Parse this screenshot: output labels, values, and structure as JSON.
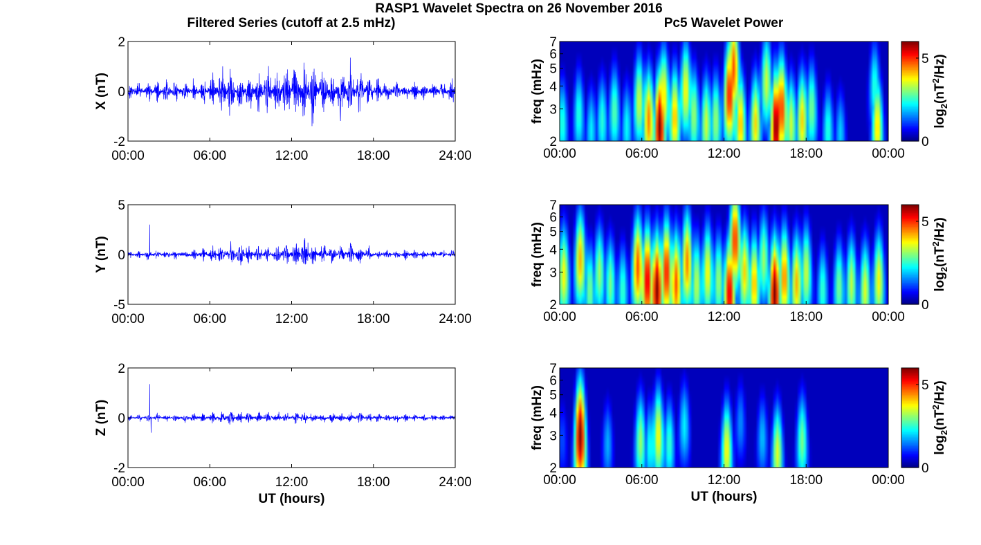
{
  "figure": {
    "title": "RASP1 Wavelet Spectra on 26 November 2016",
    "left_column_title": "Filtered Series (cutoff at 2.5 mHz)",
    "right_column_title": "Pc5 Wavelet Power"
  },
  "colors": {
    "trace": "#0000ff",
    "frame": "#000000"
  },
  "colormap": "jet",
  "chart_data": [
    {
      "type": "line",
      "component": "X",
      "ylabel": "X (nT)",
      "xlabel": "",
      "xlim": [
        0,
        24
      ],
      "ylim": [
        -2,
        2
      ],
      "yticks": [
        "2",
        "0",
        "-2"
      ],
      "xticks": [
        "00:00",
        "06:00",
        "12:00",
        "18:00",
        "24:00"
      ],
      "x_hours": [
        0,
        1,
        2,
        3,
        4,
        5,
        6,
        7,
        8,
        9,
        10,
        11,
        12,
        13,
        14,
        15,
        16,
        17,
        18,
        19,
        20,
        21,
        22,
        23,
        24
      ],
      "amplitude_nT": [
        0.2,
        0.2,
        0.25,
        0.25,
        0.25,
        0.3,
        0.35,
        0.6,
        0.55,
        0.5,
        0.5,
        0.6,
        0.7,
        0.9,
        0.6,
        0.5,
        0.7,
        0.5,
        0.35,
        0.3,
        0.25,
        0.25,
        0.2,
        0.2,
        0.3
      ],
      "peaks": [
        {
          "x": 16.3,
          "y": 1.35
        },
        {
          "x": 13.5,
          "y": -1.4
        },
        {
          "x": 12.9,
          "y": 1.15
        }
      ],
      "grid": false
    },
    {
      "type": "line",
      "component": "Y",
      "ylabel": "Y (nT)",
      "xlabel": "",
      "xlim": [
        0,
        24
      ],
      "ylim": [
        -5,
        5
      ],
      "yticks": [
        "5",
        "0",
        "-5"
      ],
      "xticks": [
        "00:00",
        "06:00",
        "12:00",
        "18:00",
        "24:00"
      ],
      "x_hours": [
        0,
        1,
        2,
        3,
        4,
        5,
        6,
        7,
        8,
        9,
        10,
        11,
        12,
        13,
        14,
        15,
        16,
        17,
        18,
        19,
        20,
        21,
        22,
        23,
        24
      ],
      "amplitude_nT": [
        0.25,
        0.25,
        0.3,
        0.3,
        0.3,
        0.35,
        0.45,
        0.7,
        0.8,
        0.6,
        0.5,
        0.6,
        0.7,
        0.9,
        0.6,
        0.55,
        0.65,
        0.5,
        0.35,
        0.3,
        0.3,
        0.3,
        0.25,
        0.25,
        0.25
      ],
      "peaks": [
        {
          "x": 1.6,
          "y": 3.0
        },
        {
          "x": 13.2,
          "y": 1.2
        }
      ],
      "grid": false
    },
    {
      "type": "line",
      "component": "Z",
      "ylabel": "Z (nT)",
      "xlabel": "UT (hours)",
      "xlim": [
        0,
        24
      ],
      "ylim": [
        -2,
        2
      ],
      "yticks": [
        "2",
        "0",
        "-2"
      ],
      "xticks": [
        "00:00",
        "06:00",
        "12:00",
        "18:00",
        "24:00"
      ],
      "x_hours": [
        0,
        1,
        2,
        3,
        4,
        5,
        6,
        7,
        8,
        9,
        10,
        11,
        12,
        13,
        14,
        15,
        16,
        17,
        18,
        19,
        20,
        21,
        22,
        23,
        24
      ],
      "amplitude_nT": [
        0.08,
        0.08,
        0.1,
        0.1,
        0.1,
        0.1,
        0.12,
        0.18,
        0.16,
        0.14,
        0.13,
        0.14,
        0.15,
        0.15,
        0.13,
        0.13,
        0.15,
        0.13,
        0.1,
        0.1,
        0.1,
        0.09,
        0.08,
        0.08,
        0.08
      ],
      "peaks": [
        {
          "x": 1.6,
          "y": 1.35
        },
        {
          "x": 1.7,
          "y": -0.6
        }
      ],
      "grid": false
    },
    {
      "type": "heatmap",
      "component": "X",
      "ylabel": "freq (mHz)",
      "xlabel": "",
      "xlim": [
        0,
        24
      ],
      "ylim": [
        2,
        7
      ],
      "y_scale": "log",
      "yticks": [
        "7",
        "6",
        "5",
        "4",
        "3",
        "2"
      ],
      "xticks": [
        "00:00",
        "06:00",
        "12:00",
        "18:00",
        "00:00"
      ],
      "colorbar_label": "log2(nT^2/Hz)",
      "colorbar_range": [
        0,
        6
      ],
      "colorbar_ticks": [
        "5",
        "0"
      ],
      "blobs": [
        {
          "t": 0.2,
          "f": 2.5,
          "power": 2.5
        },
        {
          "t": 1.4,
          "f": 2.8,
          "power": 2.5
        },
        {
          "t": 2.3,
          "f": 2.3,
          "power": 2.2
        },
        {
          "t": 3.1,
          "f": 2.6,
          "power": 2.5
        },
        {
          "t": 4.0,
          "f": 2.9,
          "power": 2.8
        },
        {
          "t": 4.9,
          "f": 2.4,
          "power": 2.3
        },
        {
          "t": 5.8,
          "f": 3.3,
          "power": 3.5
        },
        {
          "t": 6.5,
          "f": 2.6,
          "power": 4.5
        },
        {
          "t": 7.3,
          "f": 2.4,
          "power": 6.0
        },
        {
          "t": 7.6,
          "f": 3.5,
          "power": 4.0
        },
        {
          "t": 8.4,
          "f": 2.7,
          "power": 4.2
        },
        {
          "t": 9.2,
          "f": 3.8,
          "power": 3.8
        },
        {
          "t": 9.8,
          "f": 2.8,
          "power": 3.2
        },
        {
          "t": 10.7,
          "f": 2.5,
          "power": 3.5
        },
        {
          "t": 11.4,
          "f": 2.6,
          "power": 3.2
        },
        {
          "t": 12.4,
          "f": 3.6,
          "power": 5.2
        },
        {
          "t": 12.7,
          "f": 5.0,
          "power": 4.8
        },
        {
          "t": 13.2,
          "f": 2.5,
          "power": 4.2
        },
        {
          "t": 14.3,
          "f": 2.5,
          "power": 4.0
        },
        {
          "t": 15.1,
          "f": 4.2,
          "power": 3.5
        },
        {
          "t": 15.8,
          "f": 2.4,
          "power": 6.0
        },
        {
          "t": 16.2,
          "f": 3.0,
          "power": 5.0
        },
        {
          "t": 16.9,
          "f": 2.5,
          "power": 3.5
        },
        {
          "t": 17.7,
          "f": 2.6,
          "power": 4.0
        },
        {
          "t": 18.4,
          "f": 3.0,
          "power": 3.0
        },
        {
          "t": 19.6,
          "f": 2.3,
          "power": 2.5
        },
        {
          "t": 20.5,
          "f": 2.2,
          "power": 2.0
        },
        {
          "t": 23.2,
          "f": 2.4,
          "power": 4.0
        },
        {
          "t": 23.0,
          "f": 4.0,
          "power": 2.5
        }
      ]
    },
    {
      "type": "heatmap",
      "component": "Y",
      "ylabel": "freq (mHz)",
      "xlabel": "",
      "xlim": [
        0,
        24
      ],
      "ylim": [
        2,
        7
      ],
      "y_scale": "log",
      "yticks": [
        "7",
        "6",
        "5",
        "4",
        "3",
        "2"
      ],
      "xticks": [
        "00:00",
        "06:00",
        "12:00",
        "18:00",
        "00:00"
      ],
      "colorbar_label": "log2(nT^2/Hz)",
      "colorbar_range": [
        0,
        6
      ],
      "colorbar_ticks": [
        "5",
        "0"
      ],
      "blobs": [
        {
          "t": 0.3,
          "f": 2.9,
          "power": 3.8
        },
        {
          "t": 1.5,
          "f": 3.5,
          "power": 4.2
        },
        {
          "t": 2.2,
          "f": 2.4,
          "power": 3.0
        },
        {
          "t": 2.9,
          "f": 3.0,
          "power": 3.2
        },
        {
          "t": 3.7,
          "f": 2.6,
          "power": 3.0
        },
        {
          "t": 4.6,
          "f": 2.4,
          "power": 2.6
        },
        {
          "t": 5.7,
          "f": 3.2,
          "power": 4.8
        },
        {
          "t": 6.4,
          "f": 2.7,
          "power": 5.5
        },
        {
          "t": 7.1,
          "f": 2.4,
          "power": 6.0
        },
        {
          "t": 7.8,
          "f": 3.0,
          "power": 5.2
        },
        {
          "t": 8.5,
          "f": 2.6,
          "power": 4.8
        },
        {
          "t": 9.3,
          "f": 3.4,
          "power": 4.5
        },
        {
          "t": 10.0,
          "f": 2.6,
          "power": 3.4
        },
        {
          "t": 10.8,
          "f": 3.0,
          "power": 3.8
        },
        {
          "t": 11.6,
          "f": 2.7,
          "power": 3.2
        },
        {
          "t": 12.4,
          "f": 2.3,
          "power": 5.5
        },
        {
          "t": 12.8,
          "f": 4.5,
          "power": 5.0
        },
        {
          "t": 13.5,
          "f": 3.0,
          "power": 4.0
        },
        {
          "t": 14.2,
          "f": 2.6,
          "power": 4.2
        },
        {
          "t": 14.9,
          "f": 3.5,
          "power": 3.2
        },
        {
          "t": 15.7,
          "f": 2.3,
          "power": 6.0
        },
        {
          "t": 16.4,
          "f": 2.8,
          "power": 4.5
        },
        {
          "t": 17.3,
          "f": 2.6,
          "power": 4.2
        },
        {
          "t": 18.0,
          "f": 3.0,
          "power": 3.5
        },
        {
          "t": 19.2,
          "f": 2.4,
          "power": 2.6
        },
        {
          "t": 20.4,
          "f": 2.5,
          "power": 3.0
        },
        {
          "t": 21.3,
          "f": 2.6,
          "power": 3.4
        },
        {
          "t": 22.3,
          "f": 2.4,
          "power": 3.6
        },
        {
          "t": 23.3,
          "f": 2.7,
          "power": 3.8
        }
      ]
    },
    {
      "type": "heatmap",
      "component": "Z",
      "ylabel": "freq (mHz)",
      "xlabel": "UT (hours)",
      "xlim": [
        0,
        24
      ],
      "ylim": [
        2,
        7
      ],
      "y_scale": "log",
      "yticks": [
        "7",
        "6",
        "5",
        "4",
        "3",
        "2"
      ],
      "xticks": [
        "00:00",
        "06:00",
        "12:00",
        "18:00",
        "00:00"
      ],
      "colorbar_label": "log2(nT^2/Hz)",
      "colorbar_range": [
        0,
        6
      ],
      "colorbar_ticks": [
        "5",
        "0"
      ],
      "blobs": [
        {
          "t": 1.5,
          "f": 3.0,
          "power": 6.0
        },
        {
          "t": 0.2,
          "f": 2.8,
          "power": 1.2
        },
        {
          "t": 3.5,
          "f": 2.7,
          "power": 1.8
        },
        {
          "t": 5.9,
          "f": 2.8,
          "power": 3.2
        },
        {
          "t": 6.6,
          "f": 2.6,
          "power": 2.4
        },
        {
          "t": 7.2,
          "f": 3.0,
          "power": 3.8
        },
        {
          "t": 8.0,
          "f": 2.7,
          "power": 2.6
        },
        {
          "t": 9.1,
          "f": 3.4,
          "power": 2.2
        },
        {
          "t": 12.2,
          "f": 2.5,
          "power": 3.8
        },
        {
          "t": 13.2,
          "f": 3.5,
          "power": 1.6
        },
        {
          "t": 14.8,
          "f": 2.9,
          "power": 1.9
        },
        {
          "t": 15.9,
          "f": 2.4,
          "power": 3.6
        },
        {
          "t": 17.7,
          "f": 2.8,
          "power": 3.0
        }
      ]
    }
  ]
}
